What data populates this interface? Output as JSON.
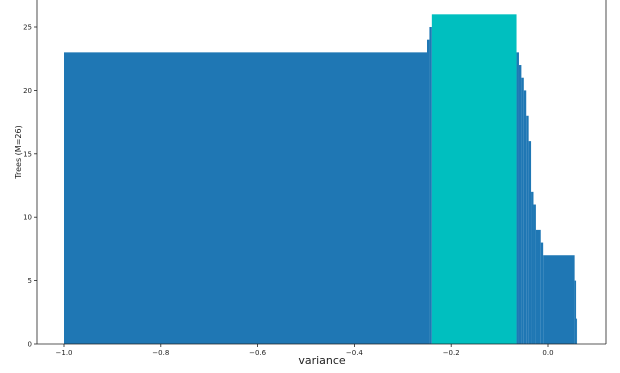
{
  "chart_data": {
    "type": "bar",
    "title": "",
    "xlabel": "variance",
    "ylabel": "Trees (M=26)",
    "xlim": [
      -1.0,
      0.06
    ],
    "ylim": [
      0,
      26
    ],
    "x_ticks": [
      -1.0,
      -0.8,
      -0.6,
      -0.4,
      -0.2,
      0.0
    ],
    "x_tick_labels": [
      "−1.0",
      "−0.8",
      "−0.6",
      "−0.4",
      "−0.2",
      "0.0"
    ],
    "y_ticks": [
      0,
      5,
      10,
      15,
      20,
      25
    ],
    "y_tick_labels": [
      "0",
      "5",
      "10",
      "15",
      "20",
      "25"
    ],
    "grid": false,
    "colors": {
      "base": "#1f77b4",
      "highlight": "#00bfbf",
      "axis": "#222222"
    },
    "series": [
      {
        "role": "base",
        "color": "#1f77b4",
        "segments": [
          {
            "x0": -1.0,
            "x1": -0.25,
            "y": 23
          },
          {
            "x0": -0.25,
            "x1": -0.245,
            "y": 24
          },
          {
            "x0": -0.245,
            "x1": -0.24,
            "y": 25
          },
          {
            "x0": -0.065,
            "x1": -0.06,
            "y": 23
          },
          {
            "x0": -0.06,
            "x1": -0.055,
            "y": 22
          },
          {
            "x0": -0.055,
            "x1": -0.05,
            "y": 21
          },
          {
            "x0": -0.05,
            "x1": -0.045,
            "y": 20
          },
          {
            "x0": -0.045,
            "x1": -0.04,
            "y": 18
          },
          {
            "x0": -0.04,
            "x1": -0.035,
            "y": 16
          },
          {
            "x0": -0.035,
            "x1": -0.03,
            "y": 12
          },
          {
            "x0": -0.03,
            "x1": -0.025,
            "y": 11
          },
          {
            "x0": -0.025,
            "x1": -0.015,
            "y": 9
          },
          {
            "x0": -0.015,
            "x1": -0.01,
            "y": 8
          },
          {
            "x0": -0.01,
            "x1": 0.055,
            "y": 7
          },
          {
            "x0": 0.055,
            "x1": 0.058,
            "y": 5
          },
          {
            "x0": 0.058,
            "x1": 0.06,
            "y": 2
          }
        ]
      },
      {
        "role": "highlight",
        "color": "#00bfbf",
        "segments": [
          {
            "x0": -0.24,
            "x1": -0.065,
            "y": 26
          }
        ]
      }
    ]
  }
}
